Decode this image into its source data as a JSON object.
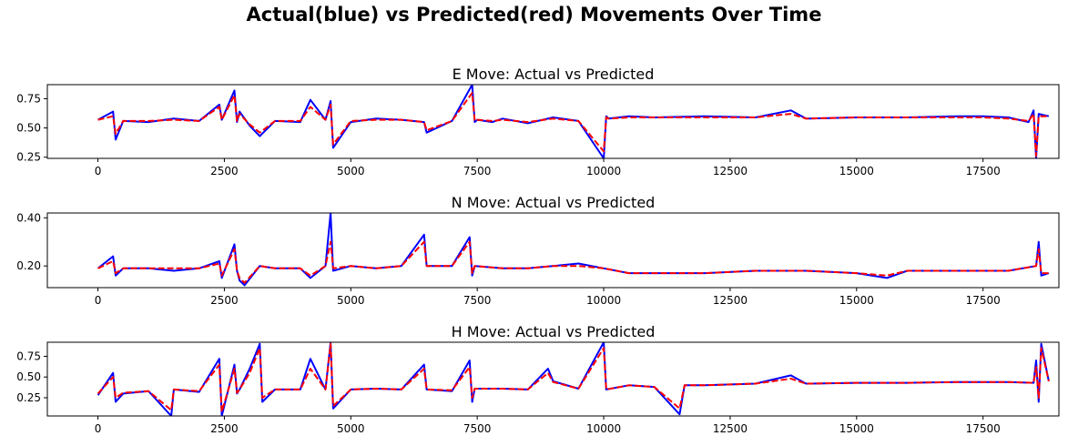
{
  "title": "Actual(blue) vs Predicted(red) Movements Over Time",
  "colors": {
    "actual": "#0000ff",
    "predicted": "#ff0000"
  },
  "chart_data": [
    {
      "type": "line",
      "title": "E Move: Actual vs Predicted",
      "xlabel": "",
      "ylabel": "",
      "xlim": [
        -1000,
        19000
      ],
      "ylim": [
        0.24,
        0.87
      ],
      "xticks": [
        0,
        2500,
        5000,
        7500,
        10000,
        12500,
        15000,
        17500
      ],
      "yticks": [
        0.25,
        0.5,
        0.75
      ],
      "grid": false,
      "series": [
        {
          "color": "#0000ff",
          "style": "solid",
          "x": [
            0,
            300,
            350,
            500,
            1000,
            1500,
            2000,
            2400,
            2450,
            2700,
            2750,
            2800,
            3000,
            3200,
            3500,
            4000,
            4200,
            4500,
            4600,
            4650,
            5000,
            5500,
            6000,
            6450,
            6500,
            7000,
            7400,
            7450,
            7500,
            7800,
            8000,
            8500,
            9000,
            9500,
            10000,
            10050,
            10100,
            10500,
            11000,
            12000,
            13000,
            13700,
            14000,
            15000,
            16000,
            17000,
            17500,
            18000,
            18400,
            18500,
            18550,
            18600,
            18800
          ],
          "y": [
            0.57,
            0.64,
            0.4,
            0.56,
            0.55,
            0.58,
            0.56,
            0.7,
            0.57,
            0.82,
            0.55,
            0.64,
            0.52,
            0.43,
            0.56,
            0.55,
            0.74,
            0.57,
            0.73,
            0.33,
            0.55,
            0.58,
            0.57,
            0.55,
            0.46,
            0.56,
            0.87,
            0.55,
            0.57,
            0.55,
            0.58,
            0.54,
            0.59,
            0.56,
            0.24,
            0.6,
            0.58,
            0.6,
            0.59,
            0.6,
            0.59,
            0.65,
            0.58,
            0.59,
            0.59,
            0.6,
            0.6,
            0.59,
            0.55,
            0.65,
            0.24,
            0.62,
            0.6
          ]
        },
        {
          "color": "#ff0000",
          "style": "dashed",
          "x": [
            0,
            300,
            350,
            500,
            1000,
            1500,
            2000,
            2400,
            2450,
            2700,
            2750,
            2800,
            3000,
            3200,
            3500,
            4000,
            4200,
            4500,
            4600,
            4650,
            5000,
            5500,
            6000,
            6450,
            6500,
            7000,
            7400,
            7450,
            7500,
            7800,
            8000,
            8500,
            9000,
            9500,
            10000,
            10050,
            10100,
            10500,
            11000,
            12000,
            13000,
            13700,
            14000,
            15000,
            16000,
            17000,
            17500,
            18000,
            18400,
            18500,
            18550,
            18600,
            18800
          ],
          "y": [
            0.57,
            0.6,
            0.45,
            0.56,
            0.56,
            0.57,
            0.56,
            0.68,
            0.57,
            0.78,
            0.56,
            0.62,
            0.53,
            0.46,
            0.56,
            0.56,
            0.68,
            0.57,
            0.7,
            0.36,
            0.56,
            0.57,
            0.57,
            0.55,
            0.48,
            0.56,
            0.8,
            0.56,
            0.57,
            0.56,
            0.57,
            0.55,
            0.58,
            0.56,
            0.3,
            0.59,
            0.58,
            0.59,
            0.59,
            0.59,
            0.59,
            0.62,
            0.58,
            0.59,
            0.59,
            0.59,
            0.59,
            0.58,
            0.56,
            0.62,
            0.26,
            0.6,
            0.6
          ]
        }
      ]
    },
    {
      "type": "line",
      "title": "N Move: Actual vs Predicted",
      "xlabel": "",
      "ylabel": "",
      "xlim": [
        -1000,
        19000
      ],
      "ylim": [
        0.11,
        0.42
      ],
      "xticks": [
        0,
        2500,
        5000,
        7500,
        10000,
        12500,
        15000,
        17500
      ],
      "yticks": [
        0.2,
        0.4
      ],
      "grid": false,
      "series": [
        {
          "color": "#0000ff",
          "style": "solid",
          "x": [
            0,
            300,
            350,
            500,
            1000,
            1500,
            2000,
            2400,
            2450,
            2700,
            2750,
            2800,
            2900,
            3200,
            3500,
            4000,
            4200,
            4500,
            4600,
            4650,
            5000,
            5500,
            6000,
            6450,
            6500,
            7000,
            7350,
            7400,
            7450,
            8000,
            8500,
            9000,
            9500,
            10000,
            10500,
            11000,
            12000,
            13000,
            14000,
            15000,
            15600,
            16000,
            17000,
            18000,
            18550,
            18600,
            18650,
            18800
          ],
          "y": [
            0.19,
            0.24,
            0.16,
            0.19,
            0.19,
            0.18,
            0.19,
            0.22,
            0.15,
            0.29,
            0.18,
            0.14,
            0.12,
            0.2,
            0.19,
            0.19,
            0.15,
            0.2,
            0.42,
            0.18,
            0.2,
            0.19,
            0.2,
            0.33,
            0.2,
            0.2,
            0.32,
            0.16,
            0.2,
            0.19,
            0.19,
            0.2,
            0.21,
            0.19,
            0.17,
            0.17,
            0.17,
            0.18,
            0.18,
            0.17,
            0.15,
            0.18,
            0.18,
            0.18,
            0.2,
            0.3,
            0.16,
            0.17
          ]
        },
        {
          "color": "#ff0000",
          "style": "dashed",
          "x": [
            0,
            300,
            350,
            500,
            1000,
            1500,
            2000,
            2400,
            2450,
            2700,
            2750,
            2800,
            2900,
            3200,
            3500,
            4000,
            4200,
            4500,
            4600,
            4650,
            5000,
            5500,
            6000,
            6450,
            6500,
            7000,
            7350,
            7400,
            7450,
            8000,
            8500,
            9000,
            9500,
            10000,
            10500,
            11000,
            12000,
            13000,
            14000,
            15000,
            15600,
            16000,
            17000,
            18000,
            18550,
            18600,
            18650,
            18800
          ],
          "y": [
            0.19,
            0.22,
            0.17,
            0.19,
            0.19,
            0.19,
            0.19,
            0.21,
            0.16,
            0.27,
            0.18,
            0.15,
            0.13,
            0.2,
            0.19,
            0.19,
            0.16,
            0.2,
            0.3,
            0.19,
            0.2,
            0.19,
            0.2,
            0.3,
            0.2,
            0.2,
            0.3,
            0.17,
            0.2,
            0.19,
            0.19,
            0.2,
            0.2,
            0.19,
            0.17,
            0.17,
            0.17,
            0.18,
            0.18,
            0.17,
            0.16,
            0.18,
            0.18,
            0.18,
            0.2,
            0.27,
            0.17,
            0.17
          ]
        }
      ]
    },
    {
      "type": "line",
      "title": "H Move: Actual vs Predicted",
      "xlabel": "",
      "ylabel": "",
      "xlim": [
        -1000,
        19000
      ],
      "ylim": [
        0.03,
        0.92
      ],
      "xticks": [
        0,
        2500,
        5000,
        7500,
        10000,
        12500,
        15000,
        17500
      ],
      "yticks": [
        0.25,
        0.5,
        0.75
      ],
      "grid": false,
      "series": [
        {
          "color": "#0000ff",
          "style": "solid",
          "x": [
            0,
            300,
            350,
            500,
            1000,
            1450,
            1500,
            2000,
            2400,
            2450,
            2700,
            2750,
            2800,
            3000,
            3200,
            3250,
            3500,
            4000,
            4200,
            4500,
            4600,
            4650,
            5000,
            5500,
            6000,
            6450,
            6500,
            7000,
            7350,
            7400,
            7450,
            8000,
            8500,
            8900,
            9000,
            9500,
            10000,
            10050,
            10500,
            11000,
            11500,
            11600,
            12000,
            13000,
            13700,
            14000,
            15000,
            16000,
            17000,
            18000,
            18500,
            18550,
            18600,
            18650,
            18800
          ],
          "y": [
            0.28,
            0.55,
            0.2,
            0.3,
            0.33,
            0.03,
            0.35,
            0.32,
            0.72,
            0.03,
            0.65,
            0.3,
            0.35,
            0.6,
            0.9,
            0.2,
            0.35,
            0.35,
            0.72,
            0.35,
            0.92,
            0.12,
            0.35,
            0.36,
            0.35,
            0.65,
            0.35,
            0.33,
            0.7,
            0.2,
            0.36,
            0.36,
            0.35,
            0.6,
            0.45,
            0.36,
            0.92,
            0.35,
            0.4,
            0.38,
            0.05,
            0.4,
            0.4,
            0.42,
            0.52,
            0.42,
            0.43,
            0.43,
            0.44,
            0.44,
            0.43,
            0.7,
            0.2,
            0.9,
            0.45
          ]
        },
        {
          "color": "#ff0000",
          "style": "dashed",
          "x": [
            0,
            300,
            350,
            500,
            1000,
            1450,
            1500,
            2000,
            2400,
            2450,
            2700,
            2750,
            2800,
            3000,
            3200,
            3250,
            3500,
            4000,
            4200,
            4500,
            4600,
            4650,
            5000,
            5500,
            6000,
            6450,
            6500,
            7000,
            7350,
            7400,
            7450,
            8000,
            8500,
            8900,
            9000,
            9500,
            10000,
            10050,
            10500,
            11000,
            11500,
            11600,
            12000,
            13000,
            13700,
            14000,
            15000,
            16000,
            17000,
            18000,
            18500,
            18550,
            18600,
            18650,
            18800
          ],
          "y": [
            0.3,
            0.5,
            0.25,
            0.31,
            0.33,
            0.1,
            0.35,
            0.33,
            0.65,
            0.08,
            0.6,
            0.31,
            0.35,
            0.55,
            0.85,
            0.25,
            0.35,
            0.35,
            0.6,
            0.35,
            0.9,
            0.15,
            0.35,
            0.36,
            0.35,
            0.6,
            0.35,
            0.34,
            0.62,
            0.25,
            0.36,
            0.36,
            0.35,
            0.55,
            0.44,
            0.36,
            0.85,
            0.35,
            0.4,
            0.38,
            0.12,
            0.4,
            0.4,
            0.42,
            0.48,
            0.42,
            0.43,
            0.43,
            0.44,
            0.44,
            0.43,
            0.62,
            0.25,
            0.85,
            0.45
          ]
        }
      ]
    }
  ]
}
